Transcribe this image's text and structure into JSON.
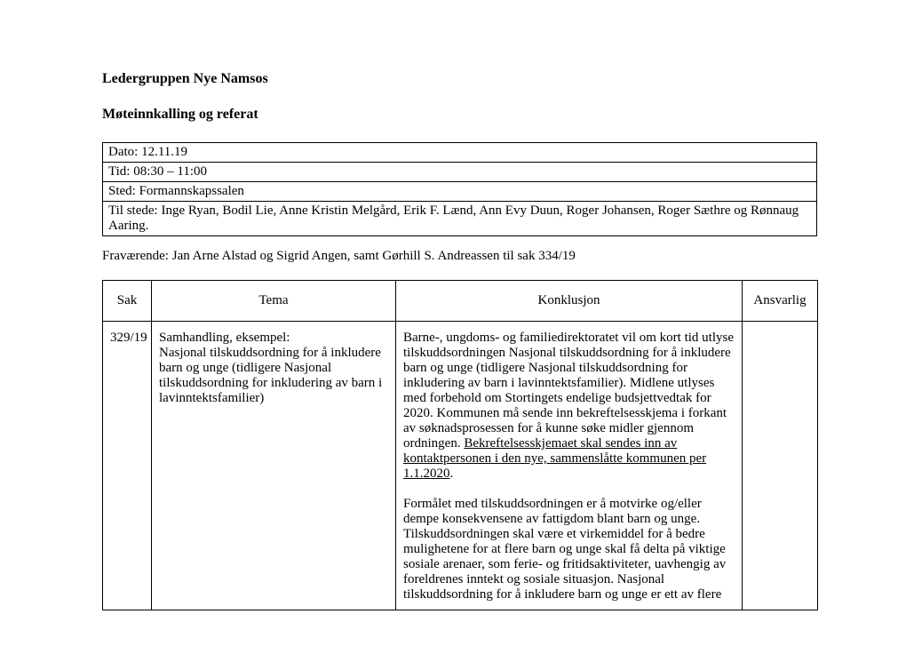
{
  "title1": "Ledergruppen Nye Namsos",
  "title2": "Møteinnkalling og referat",
  "info": {
    "dato": "Dato: 12.11.19",
    "tid": "Tid: 08:30 – 11:00",
    "sted": "Sted: Formannskapssalen",
    "tilstede": "Til stede: Inge Ryan, Bodil Lie, Anne Kristin Melgård, Erik F. Lænd, Ann Evy Duun, Roger Johansen, Roger Sæthre og Rønnaug Aaring."
  },
  "absent": "Fraværende: Jan Arne Alstad og Sigrid Angen, samt Gørhill S. Andreassen til sak 334/19",
  "headers": {
    "sak": "Sak",
    "tema": "Tema",
    "konklusjon": "Konklusjon",
    "ansvarlig": "Ansvarlig"
  },
  "row": {
    "sak": "329/19",
    "tema_line1": "Samhandling, eksempel:",
    "tema_rest": "Nasjonal tilskuddsordning for å inkludere barn og unge (tidligere Nasjonal tilskuddsordning for inkludering av barn i lavinntektsfamilier)",
    "konk_p1_a": "Barne-, ungdoms- og familiedirektoratet vil om kort tid utlyse tilskuddsordningen Nasjonal tilskuddsordning for å inkludere barn og unge (tidligere Nasjonal tilskuddsordning for inkludering av barn i lavinntektsfamilier). Midlene utlyses med forbehold om Stortingets endelige budsjettvedtak for 2020. Kommunen må sende inn bekreftelsesskjema i forkant av søknadsprosessen for å kunne søke midler gjennom ordningen. ",
    "konk_p1_u": "Bekreftelsesskjemaet skal sendes inn av kontaktpersonen i den nye, sammenslåtte kommunen per 1.1.2020",
    "konk_p1_end": ".",
    "konk_p2": "Formålet med tilskuddsordningen er å motvirke og/eller dempe konsekvensene av fattigdom blant barn og unge. Tilskuddsordningen skal være et virkemiddel for å bedre mulighetene for at flere barn og unge skal få delta på viktige sosiale arenaer, som ferie- og fritidsaktiviteter, uavhengig av foreldrenes inntekt og sosiale situasjon. Nasjonal tilskuddsordning for å inkludere barn og unge er ett av flere",
    "ansvarlig": ""
  }
}
